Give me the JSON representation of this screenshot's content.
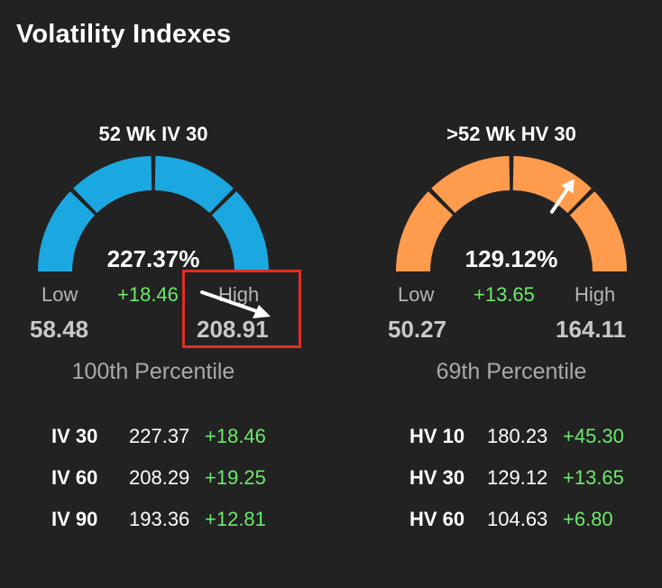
{
  "title": "Volatility Indexes",
  "colors": {
    "iv_gauge": "#1ba8e0",
    "hv_gauge": "#ff9b4d",
    "positive": "#6bea6b",
    "highlight": "#e02e24"
  },
  "iv_gauge": {
    "label": "52 Wk IV 30",
    "value": "227.37%",
    "low_label": "Low",
    "change": "+18.46",
    "high_label": "High",
    "low_value": "58.48",
    "high_value": "208.91",
    "percentile": "100th Percentile",
    "needle_fraction": 1.0
  },
  "hv_gauge": {
    "label": ">52 Wk HV 30",
    "value": "129.12%",
    "low_label": "Low",
    "change": "+13.65",
    "high_label": "High",
    "low_value": "50.27",
    "high_value": "164.11",
    "percentile": "69th Percentile",
    "needle_fraction": 0.69
  },
  "iv_table": [
    {
      "name": "IV 30",
      "value": "227.37",
      "change": "+18.46"
    },
    {
      "name": "IV 60",
      "value": "208.29",
      "change": "+19.25"
    },
    {
      "name": "IV 90",
      "value": "193.36",
      "change": "+12.81"
    }
  ],
  "hv_table": [
    {
      "name": "HV 10",
      "value": "180.23",
      "change": "+45.30"
    },
    {
      "name": "HV 30",
      "value": "129.12",
      "change": "+13.65"
    },
    {
      "name": "HV 60",
      "value": "104.63",
      "change": "+6.80"
    }
  ]
}
